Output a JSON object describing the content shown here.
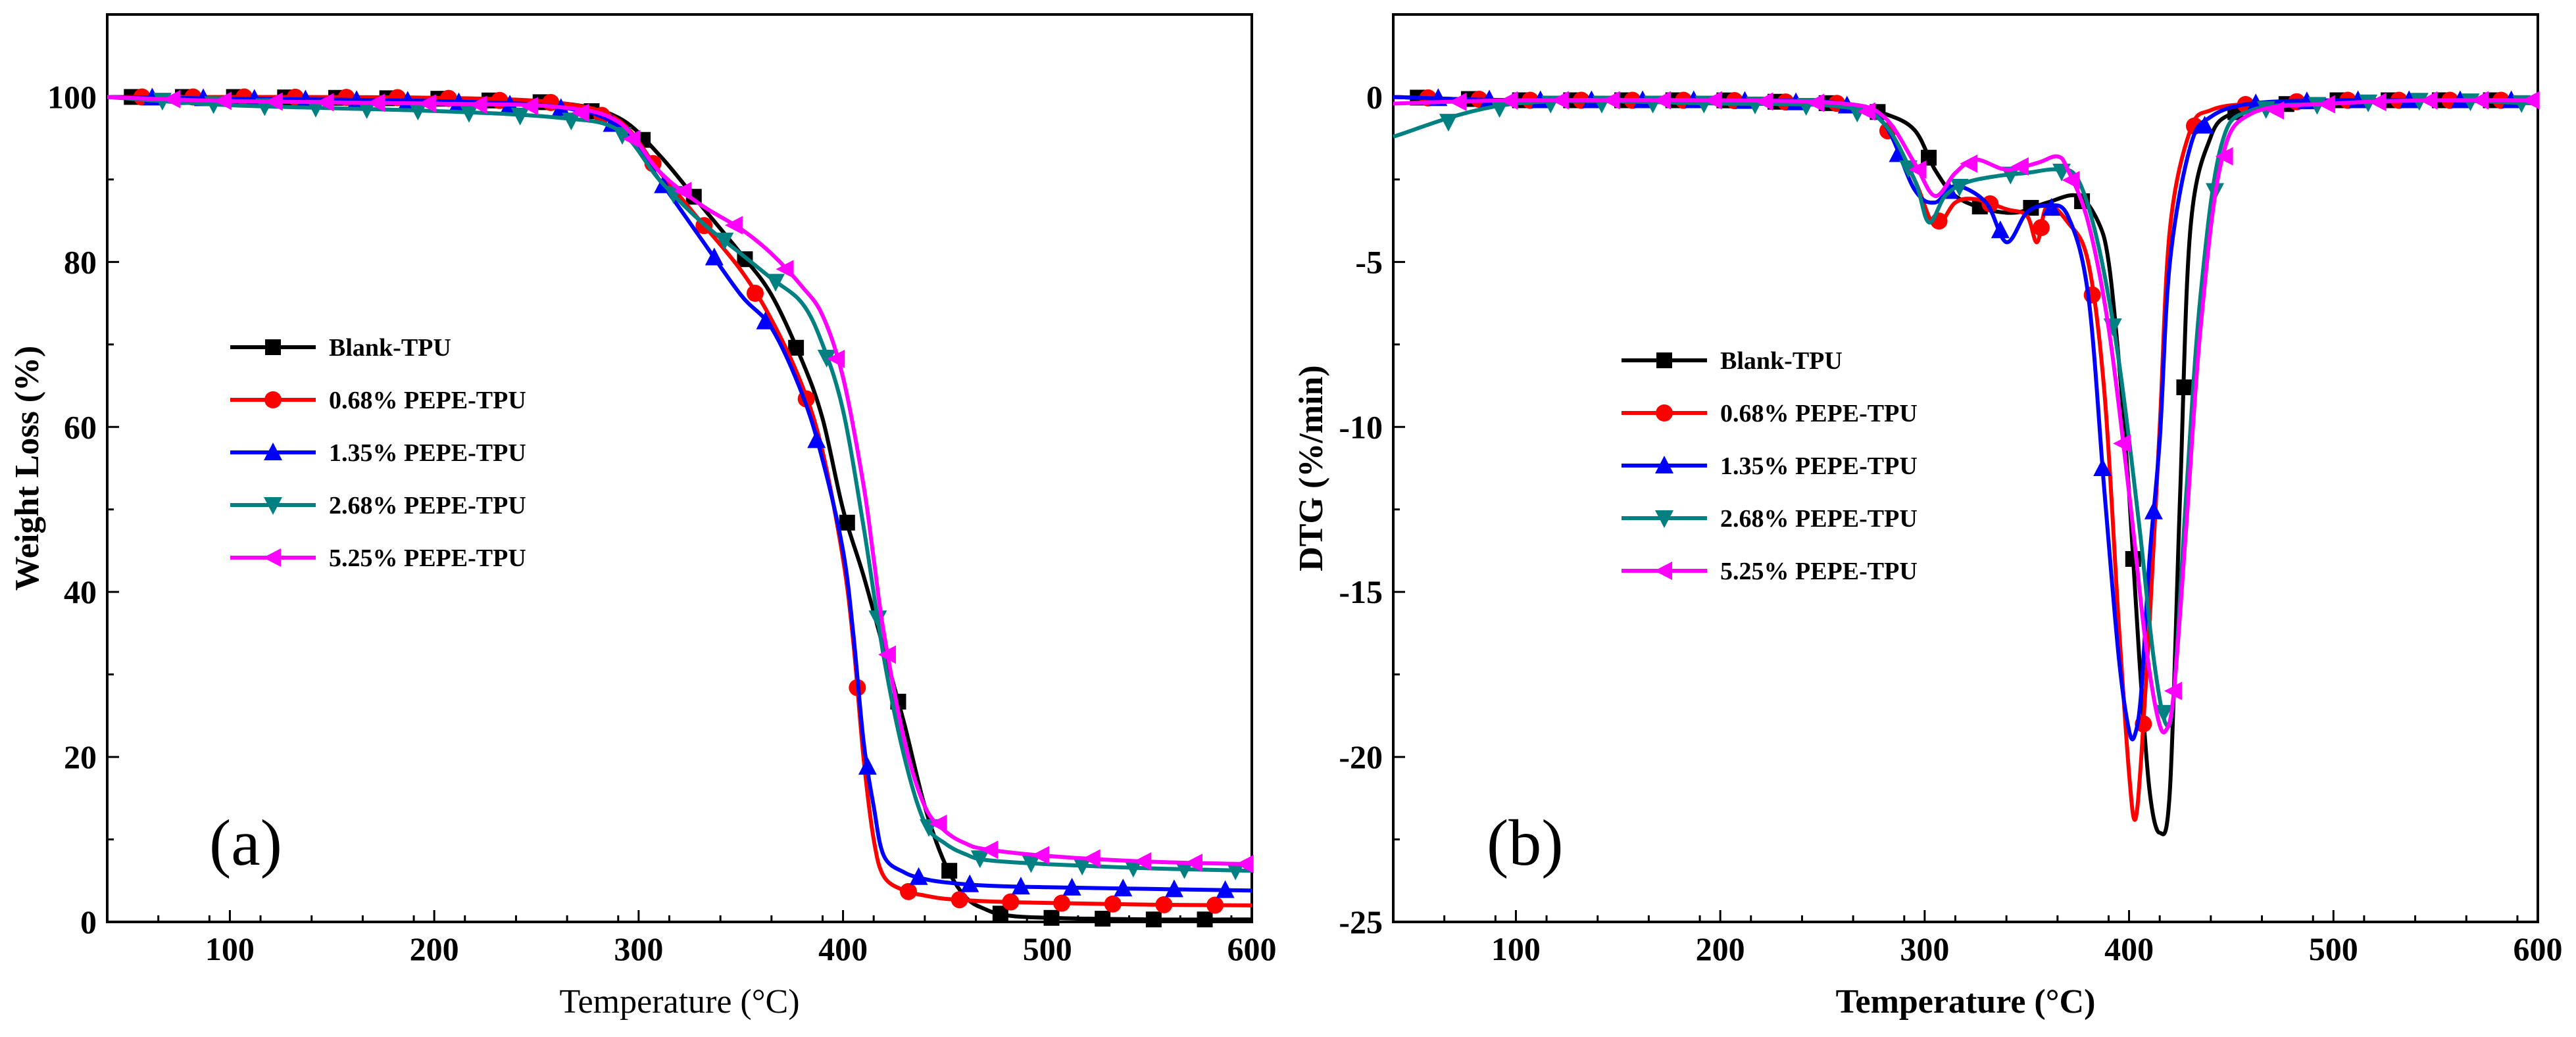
{
  "colors": {
    "blank": "#000000",
    "p068": "#ff0000",
    "p135": "#0000ff",
    "p268": "#008080",
    "p525": "#ff00ff"
  },
  "chart_data": [
    {
      "type": "line",
      "panel_label": "(a)",
      "xlabel": "Temperature (°C)",
      "ylabel": "Weight Loss (%)",
      "xlim": [
        40,
        600
      ],
      "ylim": [
        0,
        110
      ],
      "xticks": [
        100,
        200,
        300,
        400,
        500,
        600
      ],
      "yticks": [
        0,
        20,
        40,
        60,
        80,
        100
      ],
      "legend_position": "center-left",
      "series": [
        {
          "name": "Blank-TPU",
          "color_key": "blank",
          "marker": "square",
          "x": [
            40,
            100,
            200,
            260,
            290,
            310,
            330,
            350,
            365,
            380,
            390,
            400,
            410,
            420,
            430,
            440,
            450,
            460,
            470,
            480,
            500,
            550,
            600
          ],
          "y": [
            100,
            100,
            99.8,
            99.3,
            97.5,
            93,
            87,
            81,
            76,
            68,
            61,
            50,
            42,
            33,
            24,
            14,
            7,
            3,
            1.5,
            0.8,
            0.5,
            0.3,
            0.3
          ]
        },
        {
          "name": "0.68% PEPE-TPU",
          "color_key": "p068",
          "marker": "circle",
          "x": [
            40,
            100,
            200,
            260,
            290,
            310,
            330,
            350,
            365,
            380,
            390,
            400,
            405,
            410,
            415,
            420,
            430,
            440,
            450,
            470,
            500,
            550,
            600
          ],
          "y": [
            100,
            100,
            99.9,
            99.3,
            97.2,
            91,
            85,
            79,
            73,
            65,
            57,
            44,
            34,
            20,
            10,
            5.5,
            3.8,
            3.2,
            2.8,
            2.5,
            2.3,
            2.1,
            2
          ]
        },
        {
          "name": "1.35% PEPE-TPU",
          "color_key": "p135",
          "marker": "triangle-up",
          "x": [
            40,
            100,
            200,
            260,
            290,
            310,
            330,
            350,
            365,
            380,
            390,
            400,
            405,
            410,
            415,
            420,
            430,
            440,
            450,
            470,
            500,
            550,
            600
          ],
          "y": [
            100,
            99.8,
            99.5,
            98.8,
            96.5,
            90,
            83,
            76,
            72,
            64,
            56,
            45,
            35,
            22,
            14,
            8,
            6,
            5.2,
            4.8,
            4.4,
            4.2,
            4,
            3.8
          ]
        },
        {
          "name": "2.68% PEPE-TPU",
          "color_key": "p268",
          "marker": "triangle-down",
          "x": [
            40,
            100,
            200,
            260,
            290,
            310,
            330,
            350,
            365,
            380,
            390,
            400,
            410,
            420,
            430,
            440,
            450,
            460,
            470,
            500,
            550,
            600
          ],
          "y": [
            100,
            99,
            98.3,
            97.5,
            96,
            90,
            85,
            81,
            78,
            75,
            70,
            62,
            48,
            32,
            20,
            12,
            9.5,
            8.2,
            7.5,
            7,
            6.5,
            6.2
          ]
        },
        {
          "name": "5.25% PEPE-TPU",
          "color_key": "p525",
          "marker": "triangle-left",
          "x": [
            40,
            100,
            200,
            260,
            290,
            310,
            330,
            350,
            365,
            380,
            390,
            400,
            410,
            415,
            420,
            430,
            440,
            450,
            460,
            470,
            500,
            550,
            600
          ],
          "y": [
            100,
            99.5,
            99.2,
            98.8,
            97,
            91,
            87,
            84,
            81,
            77,
            73.5,
            66,
            53,
            44,
            35,
            22,
            14,
            11,
            9.5,
            8.8,
            8,
            7.3,
            7
          ]
        }
      ]
    },
    {
      "type": "line",
      "panel_label": "(b)",
      "xlabel": "Temperature (°C)",
      "ylabel": "DTG (%/min)",
      "xlim": [
        40,
        600
      ],
      "ylim": [
        -25,
        2.5
      ],
      "xticks": [
        100,
        200,
        300,
        400,
        500,
        600
      ],
      "yticks": [
        -25,
        -20,
        -15,
        -10,
        -5,
        0
      ],
      "legend_position": "center",
      "series": [
        {
          "name": "Blank-TPU",
          "color_key": "blank",
          "marker": "square",
          "x": [
            40,
            100,
            200,
            260,
            280,
            295,
            305,
            315,
            330,
            345,
            360,
            375,
            385,
            390,
            395,
            400,
            405,
            410,
            415,
            420,
            425,
            430,
            440,
            450,
            460,
            480,
            500,
            550,
            600
          ],
          "y": [
            0,
            -0.1,
            -0.1,
            -0.2,
            -0.5,
            -1,
            -2.2,
            -3,
            -3.4,
            -3.5,
            -3.2,
            -3,
            -3.8,
            -5,
            -8,
            -12,
            -17,
            -21,
            -22.3,
            -21,
            -12,
            -4,
            -1.2,
            -0.5,
            -0.3,
            -0.2,
            -0.1,
            -0.1,
            -0.1
          ]
        },
        {
          "name": "0.68% PEPE-TPU",
          "color_key": "p068",
          "marker": "circle",
          "x": [
            40,
            100,
            200,
            260,
            280,
            295,
            305,
            315,
            325,
            340,
            350,
            355,
            360,
            370,
            380,
            388,
            395,
            400,
            403,
            406,
            410,
            415,
            420,
            430,
            440,
            460,
            500,
            550,
            600
          ],
          "y": [
            0,
            -0.1,
            -0.1,
            -0.2,
            -0.8,
            -2.5,
            -3.9,
            -3.2,
            -3.1,
            -3.4,
            -3.6,
            -4.4,
            -3.3,
            -3.8,
            -5,
            -9,
            -16,
            -20.5,
            -21.9,
            -20,
            -16,
            -10,
            -4,
            -1,
            -0.4,
            -0.2,
            -0.1,
            -0.1,
            -0.1
          ]
        },
        {
          "name": "1.35% PEPE-TPU",
          "color_key": "p135",
          "marker": "triangle-up",
          "x": [
            40,
            100,
            200,
            260,
            280,
            295,
            305,
            315,
            330,
            340,
            350,
            360,
            370,
            380,
            388,
            395,
            400,
            403,
            406,
            410,
            415,
            420,
            430,
            440,
            460,
            500,
            550,
            600
          ],
          "y": [
            0,
            -0.1,
            -0.1,
            -0.2,
            -0.8,
            -2.8,
            -3.2,
            -2.7,
            -3.2,
            -4.4,
            -3.5,
            -3.3,
            -3.6,
            -6,
            -12,
            -17,
            -19.2,
            -19.3,
            -18,
            -14,
            -10.4,
            -5,
            -1.5,
            -0.6,
            -0.2,
            -0.1,
            -0.1,
            -0.1
          ]
        },
        {
          "name": "2.68% PEPE-TPU",
          "color_key": "p268",
          "marker": "triangle-down",
          "x": [
            40,
            100,
            200,
            260,
            280,
            295,
            302,
            310,
            320,
            335,
            350,
            365,
            375,
            385,
            395,
            405,
            412,
            418,
            422,
            428,
            435,
            445,
            460,
            500,
            550,
            600
          ],
          "y": [
            -1.2,
            -0.2,
            -0.2,
            -0.3,
            -0.8,
            -2.5,
            -3.8,
            -3,
            -2.6,
            -2.4,
            -2.3,
            -2.2,
            -2.5,
            -4.5,
            -8,
            -13,
            -17,
            -19,
            -18,
            -12,
            -6,
            -1.5,
            -0.4,
            -0.2,
            -0.1,
            -0.2
          ]
        },
        {
          "name": "5.25% PEPE-TPU",
          "color_key": "p525",
          "marker": "triangle-left",
          "x": [
            40,
            100,
            200,
            260,
            280,
            295,
            305,
            315,
            325,
            340,
            355,
            365,
            370,
            380,
            390,
            400,
            408,
            414,
            418,
            422,
            428,
            435,
            445,
            460,
            500,
            550,
            600
          ],
          "y": [
            -0.2,
            -0.1,
            -0.1,
            -0.2,
            -0.6,
            -2,
            -3,
            -2.3,
            -1.9,
            -2.2,
            -2,
            -1.8,
            -2.2,
            -3.8,
            -7,
            -12,
            -16.5,
            -18.8,
            -19.2,
            -18,
            -13,
            -7,
            -2,
            -0.5,
            -0.2,
            -0.1,
            -0.1
          ]
        }
      ]
    }
  ]
}
